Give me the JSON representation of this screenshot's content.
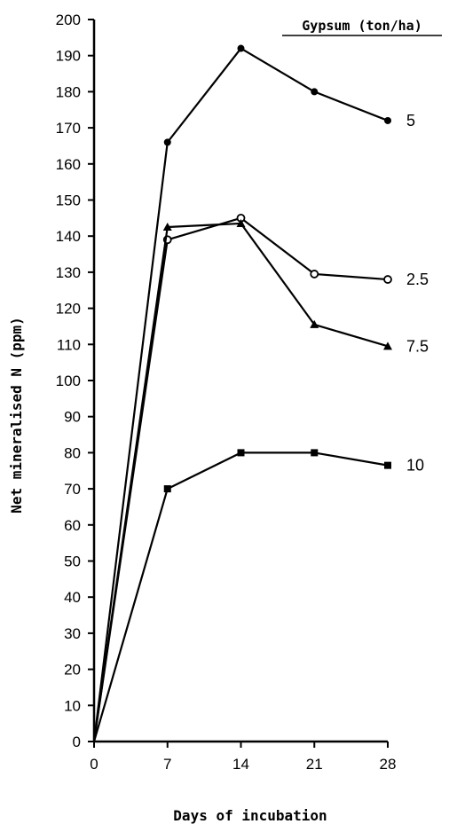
{
  "chart_data": {
    "type": "line",
    "title": "",
    "xlabel": "Days of incubation",
    "ylabel": "Net mineralised N (ppm)",
    "x": [
      0,
      7,
      14,
      21,
      28
    ],
    "x_tick_labels": [
      "0",
      "7",
      "14",
      "21",
      "28"
    ],
    "xlim": [
      0,
      28
    ],
    "ylim": [
      0,
      200
    ],
    "y_ticks": [
      0,
      10,
      20,
      30,
      40,
      50,
      60,
      70,
      80,
      90,
      100,
      110,
      120,
      130,
      140,
      150,
      160,
      170,
      180,
      190,
      200
    ],
    "y_tick_labels": [
      "0",
      "10",
      "20",
      "30",
      "40",
      "50",
      "60",
      "70",
      "80",
      "90",
      "100",
      "110",
      "120",
      "130",
      "140",
      "150",
      "160",
      "170",
      "180",
      "190",
      "200"
    ],
    "legend_title": "Gypsum (ton/ha)",
    "grid": false,
    "series": [
      {
        "name": "5",
        "marker": "filled-circle",
        "values": [
          0,
          166,
          192,
          180,
          172
        ]
      },
      {
        "name": "2.5",
        "marker": "open-circle",
        "values": [
          0,
          139,
          145,
          129.5,
          128
        ]
      },
      {
        "name": "7.5",
        "marker": "filled-triangle",
        "values": [
          0,
          142.5,
          143.5,
          115.5,
          109.5
        ]
      },
      {
        "name": "10",
        "marker": "filled-square",
        "values": [
          0,
          70,
          80,
          80,
          76.5
        ]
      }
    ]
  }
}
